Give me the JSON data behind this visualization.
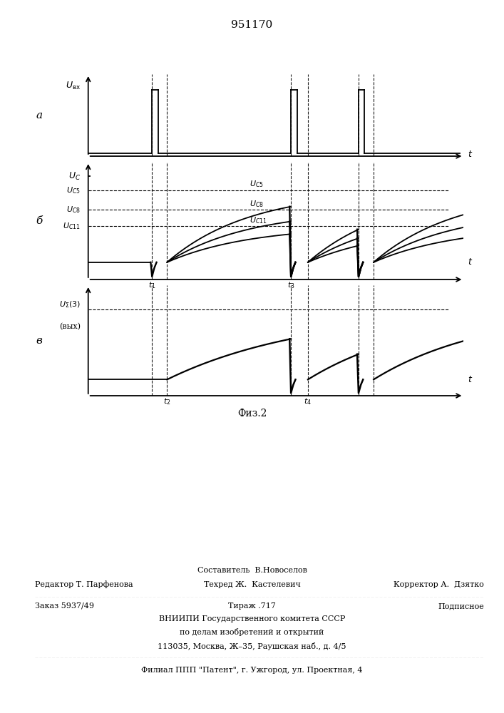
{
  "title": "951170",
  "fig_label": "Физ.2",
  "background_color": "#ffffff",
  "t1": 0.17,
  "t2": 0.21,
  "t3": 0.54,
  "t4": 0.585,
  "t5": 0.72,
  "t6": 0.76,
  "uc5": 0.75,
  "uc8": 0.55,
  "uc11": 0.38,
  "uc_ref": 0.9,
  "uc_out": 0.78,
  "footer_line1": "Составитель  В.Новоселов",
  "footer_line2_left": "Редактор Т. Парфенова",
  "footer_line2_mid": "Техред Ж.  Кастелевич",
  "footer_line2_right": "Корректор А.  Дзятко",
  "footer_line3_left": "Заказ 5937/49",
  "footer_line3_mid": "Тираж .717",
  "footer_line3_right": "Подписное",
  "footer_line4": "ВНИИПИ Государственного комитета СССР",
  "footer_line5": "по делам изобретений и открытий",
  "footer_line6": "113035, Москва, Ж–35, Раушская наб., д. 4/5",
  "footer_line7": "Филиал ППП \"Патент\", г. Ужгород, ул. Проектная, 4"
}
